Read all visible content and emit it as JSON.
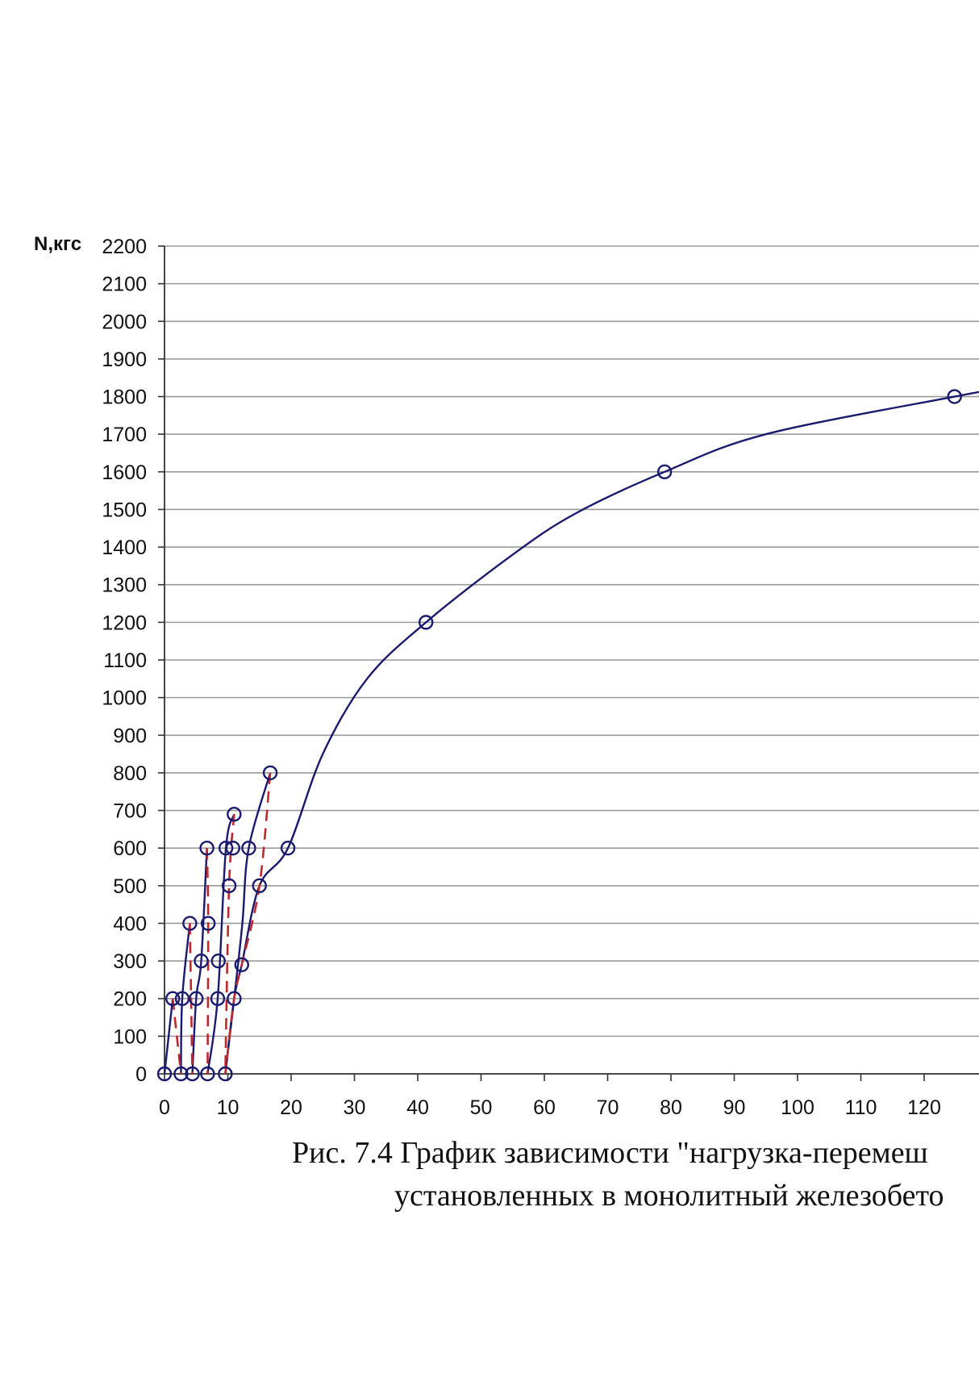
{
  "chart_data": {
    "type": "line",
    "ylabel": "N,кгс",
    "xlabel": "",
    "xlim": [
      0,
      130
    ],
    "ylim": [
      0,
      2200
    ],
    "x_ticks": [
      "0",
      "10",
      "20",
      "30",
      "40",
      "50",
      "60",
      "70",
      "80",
      "90",
      "100",
      "110",
      "120",
      "1"
    ],
    "y_ticks": [
      "0",
      "100",
      "200",
      "300",
      "400",
      "500",
      "600",
      "700",
      "800",
      "900",
      "1000",
      "1100",
      "1200",
      "1300",
      "1400",
      "1500",
      "1600",
      "1700",
      "1800",
      "1900",
      "2000",
      "2100",
      "2200"
    ],
    "grid": "horizontal",
    "series": [
      {
        "style": "solid",
        "color": "#1a1a6e",
        "points": [
          [
            0,
            0
          ],
          [
            1.3,
            200
          ]
        ]
      },
      {
        "style": "solid",
        "color": "#1a1a6e",
        "points": [
          [
            2.6,
            0
          ],
          [
            2.8,
            200
          ],
          [
            4.0,
            400
          ]
        ]
      },
      {
        "style": "solid",
        "color": "#1a1a6e",
        "points": [
          [
            4.4,
            0
          ],
          [
            5.0,
            200
          ],
          [
            5.8,
            300
          ],
          [
            6.7,
            600
          ]
        ]
      },
      {
        "style": "solid",
        "color": "#1a1a6e",
        "points": [
          [
            6.8,
            0
          ],
          [
            8.4,
            200
          ],
          [
            9.7,
            600
          ],
          [
            11.0,
            690
          ]
        ]
      },
      {
        "style": "solid",
        "color": "#1a1a6e",
        "points": [
          [
            9.6,
            0
          ],
          [
            11.0,
            200
          ],
          [
            12.3,
            400
          ],
          [
            13.3,
            600
          ],
          [
            16.7,
            800
          ]
        ]
      },
      {
        "style": "solid",
        "color": "#1a1a6e",
        "points": [
          [
            9.6,
            0
          ],
          [
            11.0,
            200
          ],
          [
            12.2,
            290
          ],
          [
            15.0,
            500
          ],
          [
            19.5,
            600
          ],
          [
            25.0,
            850
          ],
          [
            32.0,
            1050
          ],
          [
            41.3,
            1200
          ],
          [
            55.0,
            1380
          ],
          [
            65.0,
            1490
          ],
          [
            79.0,
            1600
          ],
          [
            95.0,
            1700
          ],
          [
            124.8,
            1800
          ],
          [
            130.0,
            1815
          ]
        ]
      },
      {
        "style": "dashed",
        "color": "#c0282d",
        "points": [
          [
            1.3,
            200
          ],
          [
            2.6,
            0
          ]
        ]
      },
      {
        "style": "dashed",
        "color": "#c0282d",
        "points": [
          [
            4.0,
            400
          ],
          [
            4.4,
            0
          ]
        ]
      },
      {
        "style": "dashed",
        "color": "#c0282d",
        "points": [
          [
            6.7,
            600
          ],
          [
            6.9,
            400
          ],
          [
            6.8,
            0
          ]
        ]
      },
      {
        "style": "dashed",
        "color": "#c0282d",
        "points": [
          [
            11.0,
            690
          ],
          [
            10.2,
            500
          ],
          [
            9.6,
            0
          ]
        ]
      },
      {
        "style": "dashed",
        "color": "#c0282d",
        "points": [
          [
            16.7,
            800
          ],
          [
            15.0,
            500
          ],
          [
            12.2,
            290
          ],
          [
            11.0,
            200
          ],
          [
            9.6,
            0
          ]
        ]
      }
    ],
    "markers": [
      [
        0,
        0
      ],
      [
        1.3,
        200
      ],
      [
        2.6,
        0
      ],
      [
        2.8,
        200
      ],
      [
        4.0,
        400
      ],
      [
        4.4,
        0
      ],
      [
        5.0,
        200
      ],
      [
        5.8,
        300
      ],
      [
        6.7,
        600
      ],
      [
        6.9,
        400
      ],
      [
        6.8,
        0
      ],
      [
        8.4,
        200
      ],
      [
        8.5,
        300
      ],
      [
        9.7,
        600
      ],
      [
        10.2,
        500
      ],
      [
        10.8,
        600
      ],
      [
        11.0,
        690
      ],
      [
        9.6,
        0
      ],
      [
        11.0,
        200
      ],
      [
        12.2,
        290
      ],
      [
        13.3,
        600
      ],
      [
        15.0,
        500
      ],
      [
        16.7,
        800
      ],
      [
        19.5,
        600
      ],
      [
        41.3,
        1200
      ],
      [
        79.0,
        1600
      ],
      [
        124.8,
        1800
      ]
    ]
  },
  "caption": {
    "line1": "Рис. 7.4  График зависимости \"нагрузка-перемеш",
    "line2": "установленных в монолитный железобето"
  }
}
